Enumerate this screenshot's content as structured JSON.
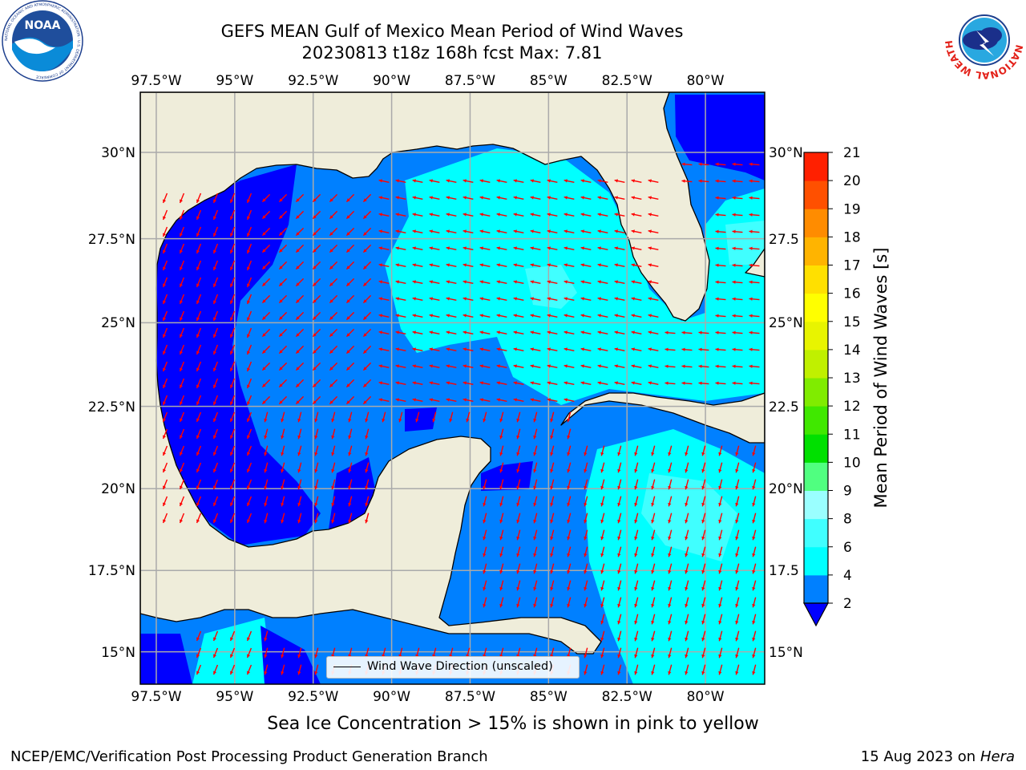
{
  "header": {
    "title_line1": "GEFS MEAN Gulf of Mexico Mean Period of Wind Waves",
    "title_line2": "20230813 t18z 168h fcst   Max: 7.81"
  },
  "logos": {
    "left": "NOAA",
    "left_ring_text": "NATIONAL OCEANIC AND ATMOSPHERIC ADMINISTRATION · U.S. DEPARTMENT OF COMMERCE",
    "right_ring_text": "NATIONAL WEATHER SERVICE"
  },
  "map": {
    "lon_range": [
      -98.25,
      -78.75
    ],
    "lat_range": [
      14.0,
      31.75
    ],
    "lon_ticks": [
      "97.5°W",
      "95°W",
      "92.5°W",
      "90°W",
      "87.5°W",
      "85°W",
      "82.5°W",
      "80°W"
    ],
    "lat_ticks_left": [
      "30°N",
      "27.5°N",
      "25°N",
      "22.5°N",
      "20°N",
      "17.5°N",
      "15°N"
    ],
    "lat_ticks_right": [
      "30°N",
      "27.5",
      "25°N",
      "22.5",
      "20°N",
      "17.5",
      "15°N"
    ],
    "land_color": "#efedda",
    "arrow_color": "#ff0000",
    "legend_label": "Wind Wave Direction (unscaled)"
  },
  "colorbar": {
    "label": "Mean Period of Wind Waves [s]",
    "ticks": [
      "2",
      "4",
      "6",
      "8",
      "9",
      "10",
      "11",
      "12",
      "13",
      "14",
      "15",
      "16",
      "17",
      "18",
      "19",
      "20",
      "21"
    ],
    "under_color": "#0000ff",
    "colors": [
      "#0080ff",
      "#00ffff",
      "#40ffff",
      "#9affff",
      "#50ff80",
      "#00e000",
      "#40e800",
      "#80ec00",
      "#c0f000",
      "#e8f400",
      "#ffff00",
      "#ffe000",
      "#ffb400",
      "#ff8c00",
      "#ff5000",
      "#ff2000",
      "#ff0000"
    ]
  },
  "note": "Sea Ice Concentration > 15% is shown in pink to yellow",
  "footer": {
    "left": "NCEP/EMC/Verification Post Processing Product Generation Branch",
    "date": "15 Aug 2023 on",
    "machine": "Hera"
  }
}
